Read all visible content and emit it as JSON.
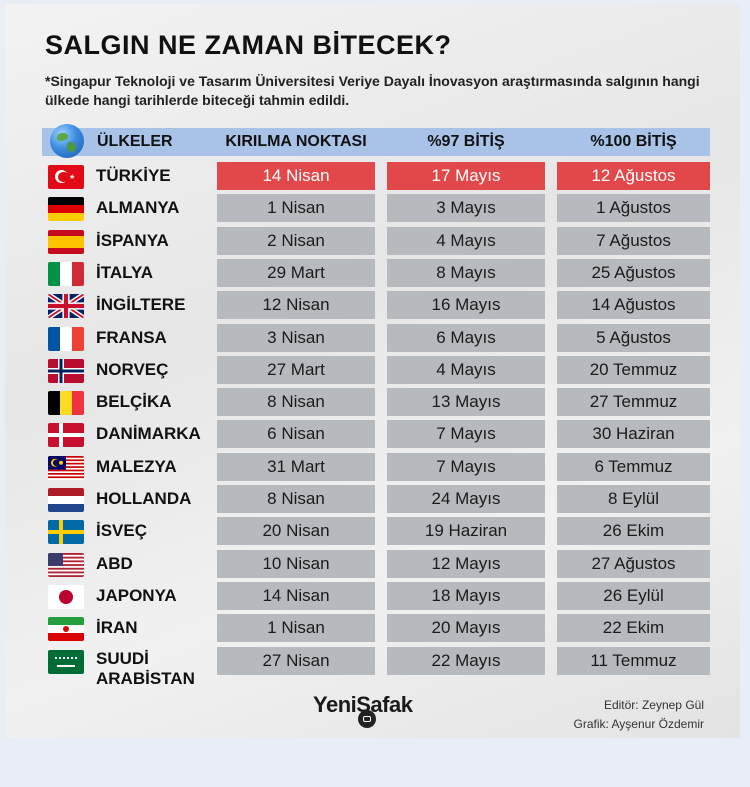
{
  "title": "SALGIN NE ZAMAN BİTECEK?",
  "subtitle": "*Singapur Teknoloji ve Tasarım Üniversitesi Veriye Dayalı İnovasyon araştırmasında salgının hangi ülkede hangi tarihlerde biteceği tahmin edildi.",
  "header": {
    "globe_icon": "globe-icon",
    "country": "ÜLKELER",
    "breakpoint": "KIRILMA NOKTASI",
    "end97": "%97 BİTİŞ",
    "end100": "%100 BİTİŞ"
  },
  "highlight_color": "#e2474a",
  "rows": [
    {
      "country": "TÜRKİYE",
      "flag": "flag-turkey-icon",
      "breakpoint": "14 Nisan",
      "end97": "17 Mayıs",
      "end100": "12 Ağustos",
      "highlight": true
    },
    {
      "country": "ALMANYA",
      "flag": "flag-germany-icon",
      "breakpoint": "1 Nisan",
      "end97": "3 Mayıs",
      "end100": "1 Ağustos"
    },
    {
      "country": "İSPANYA",
      "flag": "flag-spain-icon",
      "breakpoint": "2 Nisan",
      "end97": "4 Mayıs",
      "end100": "7 Ağustos"
    },
    {
      "country": "İTALYA",
      "flag": "flag-italy-icon",
      "breakpoint": "29 Mart",
      "end97": "8 Mayıs",
      "end100": "25 Ağustos"
    },
    {
      "country": "İNGİLTERE",
      "flag": "flag-uk-icon",
      "breakpoint": "12 Nisan",
      "end97": "16 Mayıs",
      "end100": "14 Ağustos"
    },
    {
      "country": "FRANSA",
      "flag": "flag-france-icon",
      "breakpoint": "3 Nisan",
      "end97": "6 Mayıs",
      "end100": "5 Ağustos"
    },
    {
      "country": "NORVEÇ",
      "flag": "flag-norway-icon",
      "breakpoint": "27 Mart",
      "end97": "4 Mayıs",
      "end100": "20 Temmuz"
    },
    {
      "country": "BELÇİKA",
      "flag": "flag-belgium-icon",
      "breakpoint": "8 Nisan",
      "end97": "13 Mayıs",
      "end100": "27 Temmuz"
    },
    {
      "country": "DANİMARKA",
      "flag": "flag-denmark-icon",
      "breakpoint": "6 Nisan",
      "end97": "7 Mayıs",
      "end100": "30 Haziran"
    },
    {
      "country": "MALEZYA",
      "flag": "flag-malaysia-icon",
      "breakpoint": "31 Mart",
      "end97": "7 Mayıs",
      "end100": "6 Temmuz"
    },
    {
      "country": "HOLLANDA",
      "flag": "flag-netherlands-icon",
      "breakpoint": "8 Nisan",
      "end97": "24 Mayıs",
      "end100": "8 Eylül"
    },
    {
      "country": "İSVEÇ",
      "flag": "flag-sweden-icon",
      "breakpoint": "20 Nisan",
      "end97": "19 Haziran",
      "end100": "26 Ekim"
    },
    {
      "country": "ABD",
      "flag": "flag-usa-icon",
      "breakpoint": "10 Nisan",
      "end97": "12 Mayıs",
      "end100": "27 Ağustos"
    },
    {
      "country": "JAPONYA",
      "flag": "flag-japan-icon",
      "breakpoint": "14 Nisan",
      "end97": "18 Mayıs",
      "end100": "26 Eylül"
    },
    {
      "country": "İRAN",
      "flag": "flag-iran-icon",
      "breakpoint": "1 Nisan",
      "end97": "20 Mayıs",
      "end100": "22 Ekim"
    },
    {
      "country": "SUUDİ ARABİSTAN",
      "flag": "flag-saudi-arabia-icon",
      "breakpoint": "27 Nisan",
      "end97": "22 Mayıs",
      "end100": "11 Temmuz"
    }
  ],
  "logo": {
    "part1": "Yeni",
    "part2": "Şafak",
    "icon": "camera-icon"
  },
  "credits": {
    "editor": "Editör: Zeynep Gül",
    "graphic": "Grafik: Ayşenur Özdemir"
  }
}
